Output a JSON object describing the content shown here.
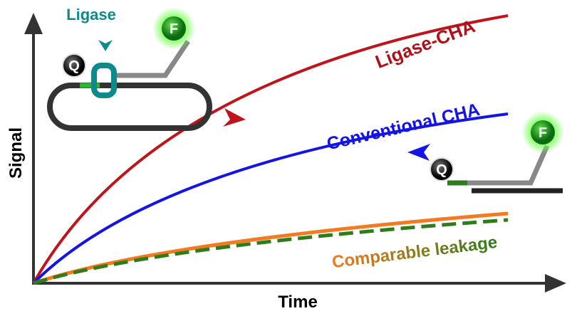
{
  "inset_top": {
    "enzyme": "Ligase",
    "quencher": "Q",
    "fluorophore": "F"
  },
  "inset_right": {
    "quencher": "Q",
    "fluorophore": "F"
  },
  "curves": {
    "ligase_cha": "Ligase-CHA",
    "conventional_cha": "Conventional CHA",
    "leakage": "Comparable leakage"
  },
  "axes": {
    "y_label": "Signal",
    "x_label": "Time"
  }
}
